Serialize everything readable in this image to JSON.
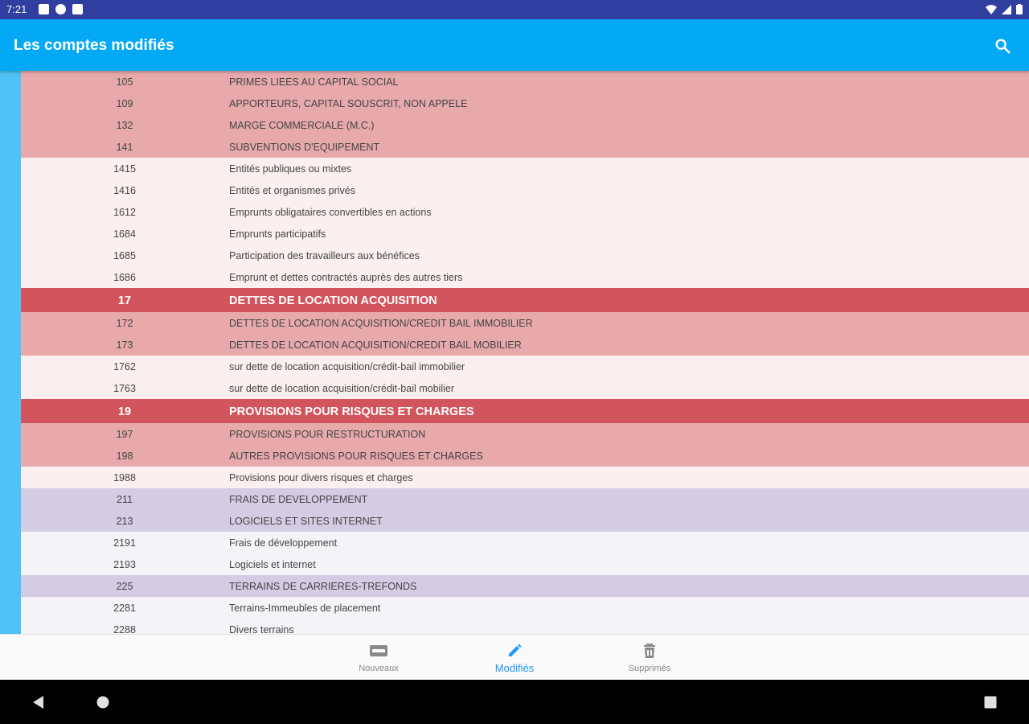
{
  "status_bar": {
    "time": "7:21"
  },
  "app_bar": {
    "title": "Les comptes modifiés",
    "search_icon": "search-icon"
  },
  "accounts": [
    {
      "code": "105",
      "label": "PRIMES LIEES AU CAPITAL SOCIAL",
      "style": "r-cls"
    },
    {
      "code": "109",
      "label": "APPORTEURS, CAPITAL SOUSCRIT, NON APPELE",
      "style": "r-cls"
    },
    {
      "code": "132",
      "label": "MARGE COMMERCIALE (M.C.)",
      "style": "r-cls"
    },
    {
      "code": "141",
      "label": "SUBVENTIONS D'EQUIPEMENT",
      "style": "r-cls"
    },
    {
      "code": "1415",
      "label": "Entités publiques ou mixtes",
      "style": "r-light"
    },
    {
      "code": "1416",
      "label": "Entités et organismes privés",
      "style": "r-light"
    },
    {
      "code": "1612",
      "label": "Emprunts obligataires convertibles en actions",
      "style": "r-light"
    },
    {
      "code": "1684",
      "label": "Emprunts participatifs",
      "style": "r-light"
    },
    {
      "code": "1685",
      "label": "Participation des travailleurs aux bénéfices",
      "style": "r-light"
    },
    {
      "code": "1686",
      "label": "Emprunt et dettes contractés auprès des autres tiers",
      "style": "r-light"
    },
    {
      "code": "17",
      "label": "DETTES DE LOCATION ACQUISITION",
      "style": "r-hdr"
    },
    {
      "code": "172",
      "label": "DETTES DE LOCATION ACQUISITION/CREDIT BAIL IMMOBILIER",
      "style": "r-cls"
    },
    {
      "code": "173",
      "label": "DETTES DE LOCATION ACQUISITION/CREDIT BAIL MOBILIER",
      "style": "r-cls"
    },
    {
      "code": "1762",
      "label": "sur dette de location acquisition/crédit-bail immobilier",
      "style": "r-light"
    },
    {
      "code": "1763",
      "label": "sur dette de location acquisition/crédit-bail mobilier",
      "style": "r-light"
    },
    {
      "code": "19",
      "label": "PROVISIONS POUR RISQUES ET CHARGES",
      "style": "r-hdr"
    },
    {
      "code": "197",
      "label": "PROVISIONS POUR RESTRUCTURATION",
      "style": "r-cls"
    },
    {
      "code": "198",
      "label": "AUTRES PROVISIONS POUR RISQUES ET CHARGES",
      "style": "r-cls"
    },
    {
      "code": "1988",
      "label": "Provisions pour divers risques et charges",
      "style": "r-light"
    },
    {
      "code": "211",
      "label": "FRAIS DE DEVELOPPEMENT",
      "style": "r-purple"
    },
    {
      "code": "213",
      "label": "LOGICIELS ET SITES INTERNET",
      "style": "r-purple"
    },
    {
      "code": "2191",
      "label": "Frais de développement",
      "style": "r-plight"
    },
    {
      "code": "2193",
      "label": "Logiciels et internet",
      "style": "r-plight"
    },
    {
      "code": "225",
      "label": "TERRAINS DE CARRIERES-TREFONDS",
      "style": "r-purple"
    },
    {
      "code": "2281",
      "label": "Terrains-Immeubles de placement",
      "style": "r-plight"
    },
    {
      "code": "2288",
      "label": "Divers terrains",
      "style": "r-plight"
    }
  ],
  "bottom_nav": {
    "new_label": "Nouveaux",
    "modified_label": "Modifiés",
    "deleted_label": "Supprimés",
    "active": "modified",
    "active_color": "#2196f3"
  },
  "colors": {
    "app_bar": "#03a9f4",
    "status_bar": "#303f9f",
    "header_row": "#d2555d",
    "class_row": "#e8a9ab",
    "purple_row": "#d3cce3"
  }
}
